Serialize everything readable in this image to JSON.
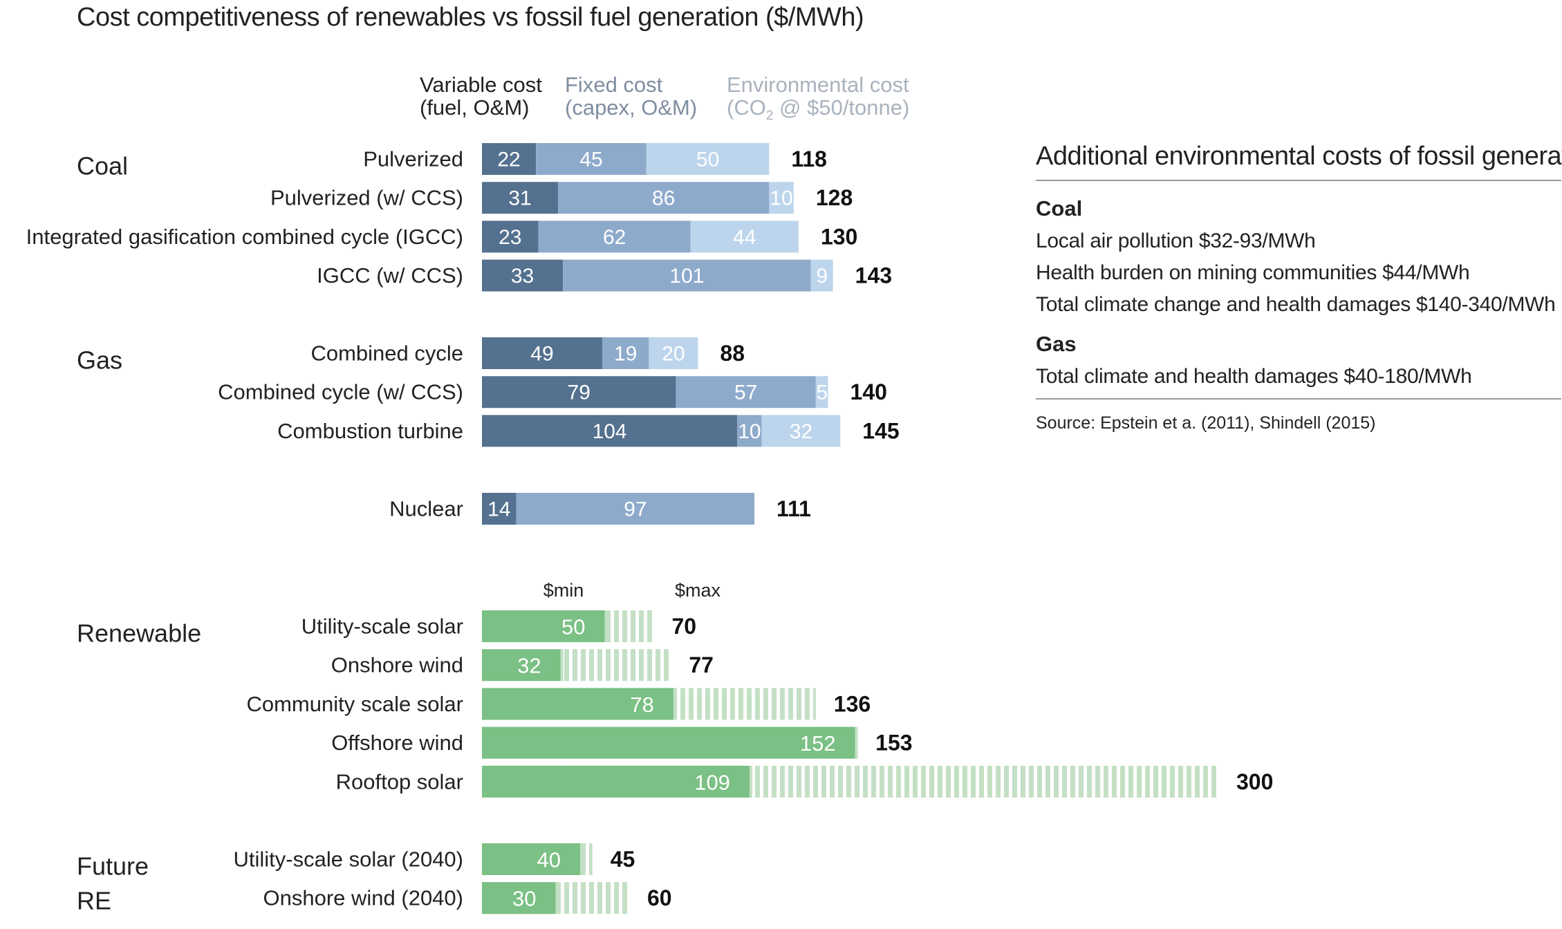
{
  "chart_data": {
    "type": "bar",
    "title": "Cost competitiveness of renewables vs fossil fuel generation ($/MWh)",
    "legend": [
      {
        "line1": "Variable cost",
        "line2": "(fuel, O&M)",
        "color": "#54718f"
      },
      {
        "line1": "Fixed cost",
        "line2": "(capex, O&M)",
        "color": "#8eaacb"
      },
      {
        "line1": "Environmental cost",
        "line2_pre": "(CO",
        "line2_sub": "2",
        "line2_post": " @ $50/tonne)",
        "color": "#bdd5ec"
      }
    ],
    "range_labels": {
      "min": "$min",
      "max": "$max"
    },
    "series_colors": {
      "variable": "#54718f",
      "fixed": "#8eaacb",
      "environmental": "#bdd5ec",
      "renewable_min": "#7bc084",
      "renewable_max": "#c3e0c4"
    },
    "groups": [
      {
        "name": "Coal",
        "kind": "stacked",
        "rows": [
          {
            "label": "Pulverized",
            "values": [
              22,
              45,
              50
            ],
            "total": 118
          },
          {
            "label": "Pulverized (w/ CCS)",
            "values": [
              31,
              86,
              10
            ],
            "total": 128
          },
          {
            "label": "Integrated gasification combined cycle (IGCC)",
            "values": [
              23,
              62,
              44
            ],
            "total": 130
          },
          {
            "label": "IGCC (w/ CCS)",
            "values": [
              33,
              101,
              9
            ],
            "total": 143
          }
        ]
      },
      {
        "name": "Gas",
        "kind": "stacked",
        "rows": [
          {
            "label": "Combined cycle",
            "values": [
              49,
              19,
              20
            ],
            "total": 88
          },
          {
            "label": "Combined cycle (w/ CCS)",
            "values": [
              79,
              57,
              5
            ],
            "total": 140
          },
          {
            "label": "Combustion turbine",
            "values": [
              104,
              10,
              32
            ],
            "total": 145
          }
        ]
      },
      {
        "name": "",
        "kind": "stacked",
        "rows": [
          {
            "label": "Nuclear",
            "values": [
              14,
              97
            ],
            "total": 111
          }
        ]
      },
      {
        "name": "Renewable",
        "kind": "range",
        "rows": [
          {
            "label": "Utility-scale solar",
            "min": 50,
            "max": 70
          },
          {
            "label": "Onshore wind",
            "min": 32,
            "max": 77
          },
          {
            "label": "Community scale solar",
            "min": 78,
            "max": 136
          },
          {
            "label": "Offshore wind",
            "min": 152,
            "max": 153
          },
          {
            "label": "Rooftop solar",
            "min": 109,
            "max": 300
          }
        ]
      },
      {
        "name": "Future RE",
        "kind": "range",
        "rows": [
          {
            "label": "Utility-scale solar (2040)",
            "min": 40,
            "max": 45
          },
          {
            "label": "Onshore wind (2040)",
            "min": 30,
            "max": 60
          }
        ]
      }
    ]
  },
  "side_panel": {
    "title": "Additional environmental costs of fossil generation",
    "sections": [
      {
        "heading": "Coal",
        "lines": [
          "Local air pollution  $32-93/MWh",
          "Health burden on mining communities  $44/MWh",
          "Total climate change and health damages  $140-340/MWh"
        ]
      },
      {
        "heading": "Gas",
        "lines": [
          "Total climate and health damages  $40-180/MWh"
        ]
      }
    ],
    "source": "Source: Epstein et a. (2011), Shindell (2015)"
  }
}
